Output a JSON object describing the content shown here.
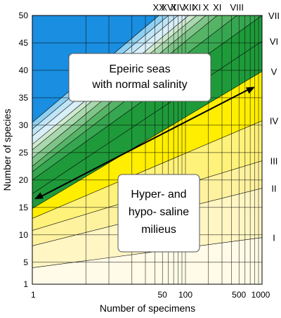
{
  "chart_data": {
    "type": "area",
    "title": "",
    "xlabel": "Number of specimens",
    "ylabel": "Number of species",
    "xscale": "log",
    "xlim": [
      1,
      1000
    ],
    "ylim": [
      1,
      50
    ],
    "yticks": [
      1,
      5,
      10,
      15,
      20,
      25,
      30,
      35,
      40,
      45,
      50
    ],
    "xtick_labels": [
      "1",
      "50",
      "100",
      "500",
      "1000"
    ],
    "xtick_values": [
      1,
      50,
      100,
      500,
      1000
    ],
    "grid_x": [
      1,
      5,
      10,
      20,
      30,
      40,
      50,
      60,
      70,
      80,
      90,
      100,
      200,
      300,
      400,
      500,
      600,
      700,
      800,
      900,
      1000
    ],
    "isolines_right": [
      {
        "label": "I",
        "y_at_1": 4.0,
        "y_at_1000": 9.5
      },
      {
        "label": "II",
        "y_at_1": 8.0,
        "y_at_1000": 18.5
      },
      {
        "label": "III",
        "y_at_1": 10.8,
        "y_at_1000": 23.5
      },
      {
        "label": "IV",
        "y_at_1": 13.0,
        "y_at_1000": 30.8
      },
      {
        "label": "V",
        "y_at_1": 14.8,
        "y_at_1000": 39.8
      },
      {
        "label": "VI",
        "y_at_1": 17.5,
        "y_at_1000": 45.3
      },
      {
        "label": "VII",
        "y_at_1": 20.0,
        "y_at_1000": 50.0
      }
    ],
    "isolines_top": [
      {
        "label": "XX",
        "y_at_1": 30.5,
        "x_at_50": 45
      },
      {
        "label": "XVI",
        "y_at_1": 29.3,
        "x_at_50": 60
      },
      {
        "label": "XIV",
        "y_at_1": 28.0,
        "x_at_50": 80
      },
      {
        "label": "XII",
        "y_at_1": 26.5,
        "x_at_50": 110
      },
      {
        "label": "XI",
        "y_at_1": 25.5,
        "x_at_50": 140
      },
      {
        "label": "X",
        "y_at_1": 24.0,
        "x_at_50": 185
      },
      {
        "label": "XI",
        "y_at_1": 22.5,
        "x_at_50": 260
      },
      {
        "label": "VIII",
        "y_at_1": 21.5,
        "x_at_50": 470
      }
    ],
    "arrow": {
      "from": [
        1,
        16.5
      ],
      "to": [
        1000,
        37.0
      ]
    },
    "annotations": [
      {
        "lines": [
          "Epeiric seas",
          "with normal salinity"
        ]
      },
      {
        "lines": [
          "Hyper- and",
          "hypo- saline",
          "milieus"
        ]
      }
    ],
    "colors": {
      "blue": "#1a8ee0",
      "yellow": "#ffee00",
      "green_dark": "#1f9a3a"
    }
  }
}
